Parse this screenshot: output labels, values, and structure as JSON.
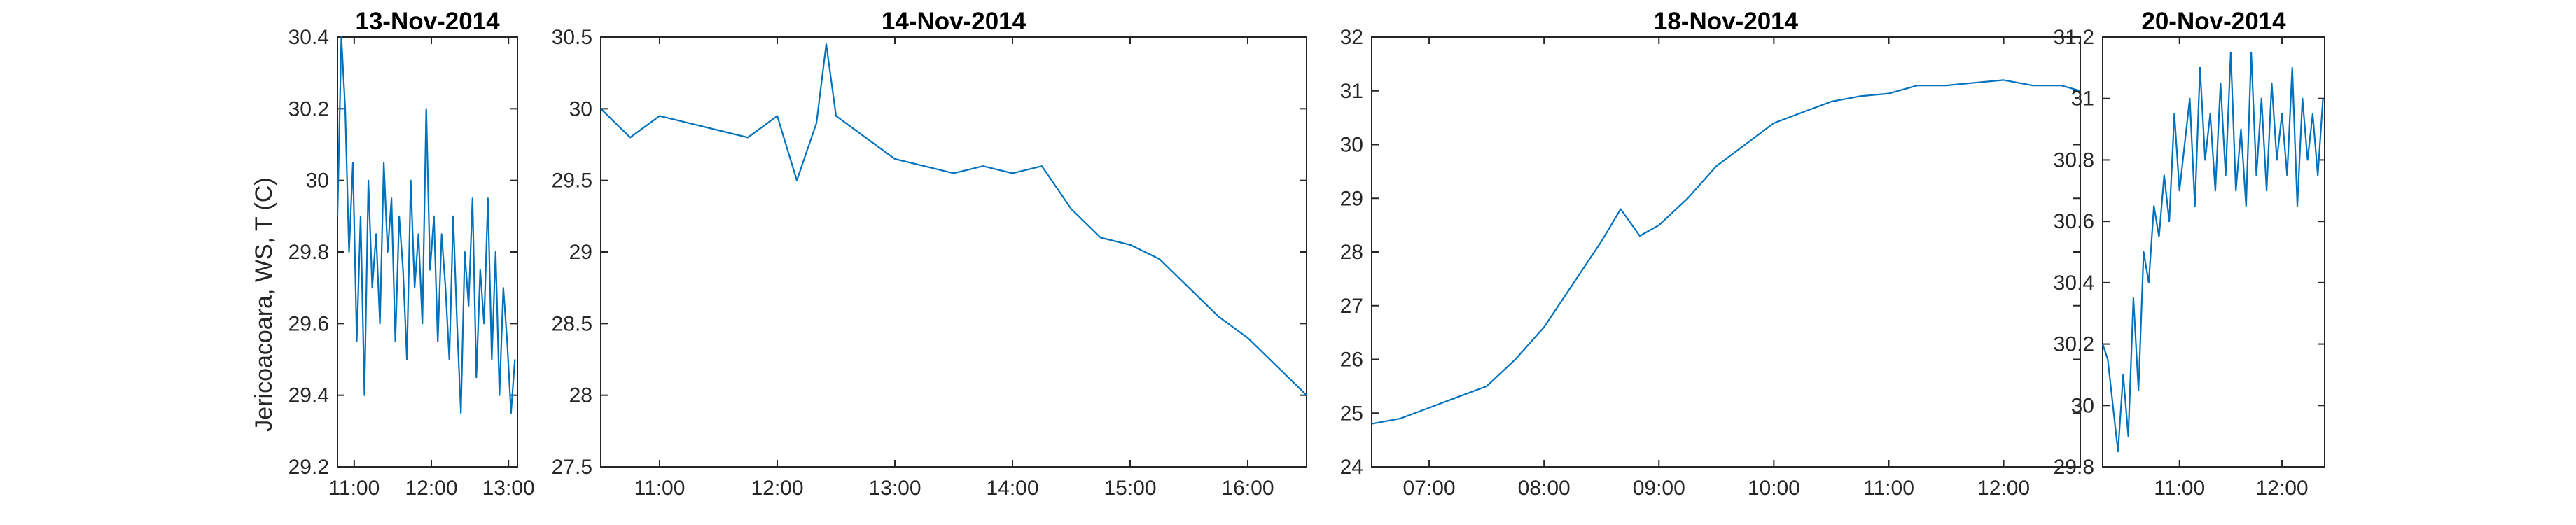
{
  "ylabel": "Jericoacoara, WS, T (C)",
  "line_color": "#0072BD",
  "chart_data": [
    {
      "type": "line",
      "title": "13-Nov-2014",
      "xlabel": "",
      "ylabel": "Jericoacoara, WS, T (C)",
      "x_unit": "time of day",
      "xlim": [
        "10:47",
        "13:07"
      ],
      "ylim": [
        29.2,
        30.4
      ],
      "x_ticks": [
        "11:00",
        "12:00",
        "13:00"
      ],
      "y_ticks": [
        "29.2",
        "29.4",
        "29.6",
        "29.8",
        "30",
        "30.2",
        "30.4"
      ],
      "series": [
        {
          "x": [
            "10:47",
            "10:50",
            "10:53",
            "10:56",
            "10:59",
            "11:02",
            "11:05",
            "11:08",
            "11:11",
            "11:14",
            "11:17",
            "11:20",
            "11:23",
            "11:26",
            "11:29",
            "11:32",
            "11:35",
            "11:38",
            "11:41",
            "11:44",
            "11:47",
            "11:50",
            "11:53",
            "11:56",
            "11:59",
            "12:02",
            "12:05",
            "12:08",
            "12:11",
            "12:14",
            "12:17",
            "12:20",
            "12:23",
            "12:26",
            "12:29",
            "12:32",
            "12:35",
            "12:38",
            "12:41",
            "12:44",
            "12:47",
            "12:50",
            "12:53",
            "12:56",
            "12:59",
            "13:02",
            "13:05"
          ],
          "y": [
            29.9,
            30.4,
            30.2,
            29.8,
            30.05,
            29.55,
            29.9,
            29.4,
            30.0,
            29.7,
            29.85,
            29.6,
            30.05,
            29.8,
            29.95,
            29.55,
            29.9,
            29.75,
            29.5,
            30.0,
            29.7,
            29.85,
            29.6,
            30.2,
            29.75,
            29.9,
            29.55,
            29.85,
            29.7,
            29.5,
            29.9,
            29.6,
            29.35,
            29.8,
            29.65,
            29.95,
            29.45,
            29.75,
            29.6,
            29.95,
            29.5,
            29.8,
            29.4,
            29.7,
            29.55,
            29.35,
            29.5
          ]
        }
      ]
    },
    {
      "type": "line",
      "title": "14-Nov-2014",
      "xlabel": "",
      "ylabel": "",
      "x_unit": "time of day",
      "xlim": [
        "10:30",
        "16:30"
      ],
      "ylim": [
        27.5,
        30.5
      ],
      "x_ticks": [
        "11:00",
        "12:00",
        "13:00",
        "14:00",
        "15:00",
        "16:00"
      ],
      "y_ticks": [
        "27.5",
        "28",
        "28.5",
        "29",
        "29.5",
        "30",
        "30.5"
      ],
      "series": [
        {
          "x": [
            "10:30",
            "10:45",
            "11:00",
            "11:15",
            "11:30",
            "11:45",
            "12:00",
            "12:10",
            "12:20",
            "12:25",
            "12:30",
            "12:45",
            "13:00",
            "13:15",
            "13:30",
            "13:45",
            "14:00",
            "14:15",
            "14:30",
            "14:45",
            "15:00",
            "15:15",
            "15:30",
            "15:45",
            "16:00",
            "16:15",
            "16:30"
          ],
          "y": [
            30.0,
            29.8,
            29.95,
            29.9,
            29.85,
            29.8,
            29.95,
            29.5,
            29.9,
            30.45,
            29.95,
            29.8,
            29.65,
            29.6,
            29.55,
            29.6,
            29.55,
            29.6,
            29.3,
            29.1,
            29.05,
            28.95,
            28.75,
            28.55,
            28.4,
            28.2,
            28.0
          ]
        }
      ]
    },
    {
      "type": "line",
      "title": "18-Nov-2014",
      "xlabel": "",
      "ylabel": "",
      "x_unit": "time of day",
      "xlim": [
        "06:30",
        "12:40"
      ],
      "ylim": [
        24,
        32
      ],
      "x_ticks": [
        "07:00",
        "08:00",
        "09:00",
        "10:00",
        "11:00",
        "12:00"
      ],
      "y_ticks": [
        "24",
        "25",
        "26",
        "27",
        "28",
        "29",
        "30",
        "31",
        "32"
      ],
      "series": [
        {
          "x": [
            "06:30",
            "06:45",
            "07:00",
            "07:15",
            "07:30",
            "07:45",
            "08:00",
            "08:15",
            "08:30",
            "08:40",
            "08:50",
            "09:00",
            "09:15",
            "09:30",
            "09:45",
            "10:00",
            "10:15",
            "10:30",
            "10:45",
            "11:00",
            "11:15",
            "11:30",
            "11:45",
            "12:00",
            "12:15",
            "12:30",
            "12:40"
          ],
          "y": [
            24.8,
            24.9,
            25.1,
            25.3,
            25.5,
            26.0,
            26.6,
            27.4,
            28.2,
            28.8,
            28.3,
            28.5,
            29.0,
            29.6,
            30.0,
            30.4,
            30.6,
            30.8,
            30.9,
            30.95,
            31.1,
            31.1,
            31.15,
            31.2,
            31.1,
            31.1,
            31.0
          ]
        }
      ]
    },
    {
      "type": "line",
      "title": "20-Nov-2014",
      "xlabel": "",
      "ylabel": "",
      "x_unit": "time of day",
      "xlim": [
        "10:15",
        "12:25"
      ],
      "ylim": [
        29.8,
        31.2
      ],
      "x_ticks": [
        "11:00",
        "12:00"
      ],
      "y_ticks": [
        "29.8",
        "30",
        "30.2",
        "30.4",
        "30.6",
        "30.8",
        "31",
        "31.2"
      ],
      "series": [
        {
          "x": [
            "10:15",
            "10:18",
            "10:21",
            "10:24",
            "10:27",
            "10:30",
            "10:33",
            "10:36",
            "10:39",
            "10:42",
            "10:45",
            "10:48",
            "10:51",
            "10:54",
            "10:57",
            "11:00",
            "11:03",
            "11:06",
            "11:09",
            "11:12",
            "11:15",
            "11:18",
            "11:21",
            "11:24",
            "11:27",
            "11:30",
            "11:33",
            "11:36",
            "11:39",
            "11:42",
            "11:45",
            "11:48",
            "11:51",
            "11:54",
            "11:57",
            "12:00",
            "12:03",
            "12:06",
            "12:09",
            "12:12",
            "12:15",
            "12:18",
            "12:21",
            "12:24"
          ],
          "y": [
            30.2,
            30.15,
            30.0,
            29.85,
            30.1,
            29.9,
            30.35,
            30.05,
            30.5,
            30.4,
            30.65,
            30.55,
            30.75,
            30.6,
            30.95,
            30.7,
            30.85,
            31.0,
            30.65,
            31.1,
            30.8,
            30.95,
            30.7,
            31.05,
            30.75,
            31.15,
            30.7,
            30.9,
            30.65,
            31.15,
            30.75,
            31.0,
            30.7,
            31.05,
            30.8,
            30.95,
            30.75,
            31.1,
            30.65,
            31.0,
            30.8,
            30.95,
            30.75,
            31.0
          ]
        }
      ]
    }
  ]
}
